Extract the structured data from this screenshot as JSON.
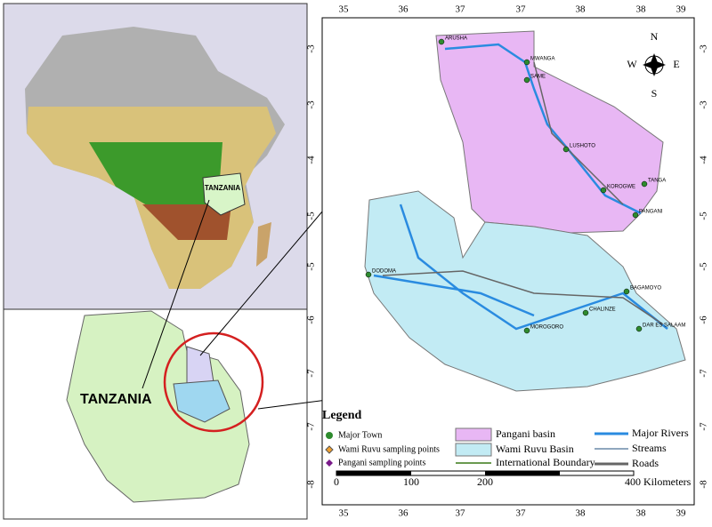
{
  "left_panel": {
    "africa_label": "TANZANIA",
    "tanzania_label": "TANZANIA"
  },
  "right_map": {
    "top_ticks": [
      "35",
      "36",
      "37",
      "37",
      "38",
      "38",
      "39"
    ],
    "bottom_ticks": [
      "35",
      "36",
      "37",
      "37",
      "38",
      "38",
      "39"
    ],
    "left_ticks": [
      "-3",
      "-3",
      "-4",
      "-5",
      "-5",
      "-6",
      "-7",
      "-7",
      "-8"
    ],
    "right_ticks": [
      "-3",
      "-3",
      "-4",
      "-5",
      "-5",
      "-6",
      "-7",
      "-7",
      "-8"
    ],
    "towns": [
      "ARUSHA",
      "MWANGA",
      "SAME",
      "LUSHOTO",
      "KOROGWE",
      "TANGA",
      "PANGANI",
      "DODOMA",
      "BAGAMOYO",
      "CHALINZE",
      "DAR ES SALAAM",
      "MOROGORO"
    ],
    "compass": {
      "n": "N",
      "e": "E",
      "s": "S",
      "w": "W"
    }
  },
  "legend": {
    "title": "Legend",
    "items": [
      "Major Town",
      "Wami Ruvu sampling points",
      "Pangani sampling points",
      "Pangani basin",
      "Wami Ruvu Basin",
      "International Boundary",
      "Major Rivers",
      "Streams",
      "Roads"
    ]
  },
  "scale_bar": {
    "labels": [
      "0",
      "100",
      "200",
      "400 Kilometers"
    ]
  }
}
